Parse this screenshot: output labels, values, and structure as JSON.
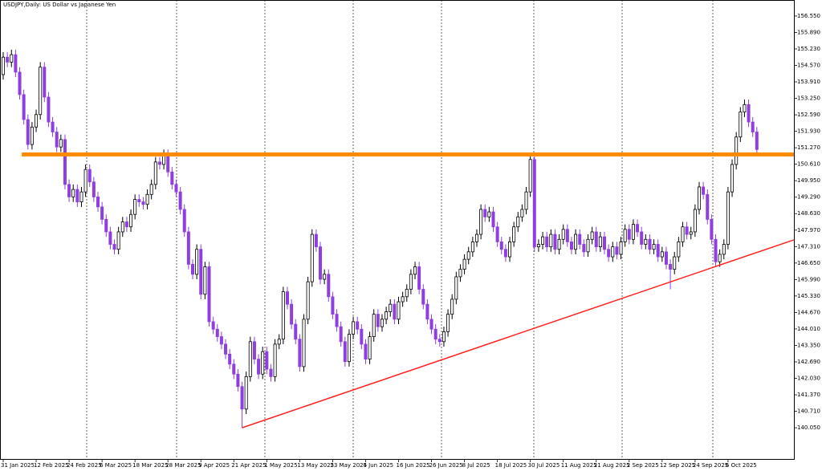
{
  "chart_data": {
    "type": "candlestick",
    "title": "USDJPY,Daily:  US Dollar vs Japanese Yen",
    "up_color": "#ffffff",
    "down_color": "#8e3fe0",
    "outline_color": "#000000",
    "xlim": [
      -0.78,
      192
    ],
    "ylim": [
      138.8,
      157.19
    ],
    "yticks": [
      {
        "value": 156.55,
        "label": "156.550"
      },
      {
        "value": 155.89,
        "label": "155.890"
      },
      {
        "value": 155.23,
        "label": "155.230"
      },
      {
        "value": 154.57,
        "label": "154.570"
      },
      {
        "value": 153.91,
        "label": "153.910"
      },
      {
        "value": 153.25,
        "label": "153.250"
      },
      {
        "value": 152.59,
        "label": "152.590"
      },
      {
        "value": 151.93,
        "label": "151.930"
      },
      {
        "value": 151.27,
        "label": "151.270"
      },
      {
        "value": 150.61,
        "label": "150.610"
      },
      {
        "value": 149.95,
        "label": "149.950"
      },
      {
        "value": 149.29,
        "label": "149.290"
      },
      {
        "value": 148.63,
        "label": "148.630"
      },
      {
        "value": 147.97,
        "label": "147.970"
      },
      {
        "value": 147.31,
        "label": "147.310"
      },
      {
        "value": 146.65,
        "label": "146.650"
      },
      {
        "value": 145.99,
        "label": "145.990"
      },
      {
        "value": 145.33,
        "label": "145.330"
      },
      {
        "value": 144.67,
        "label": "144.670"
      },
      {
        "value": 144.01,
        "label": "144.010"
      },
      {
        "value": 143.35,
        "label": "143.350"
      },
      {
        "value": 142.69,
        "label": "142.690"
      },
      {
        "value": 142.03,
        "label": "142.030"
      },
      {
        "value": 141.37,
        "label": "141.370"
      },
      {
        "value": 140.71,
        "label": "140.710"
      },
      {
        "value": 140.05,
        "label": "140.050"
      }
    ],
    "categories": [
      "31 Jan 2025",
      null,
      null,
      null,
      null,
      null,
      null,
      null,
      "12 Feb 2025",
      null,
      null,
      null,
      null,
      null,
      null,
      null,
      "24 Feb 2025",
      null,
      null,
      null,
      null,
      null,
      null,
      null,
      "6 Mar 2025",
      null,
      null,
      null,
      null,
      null,
      null,
      null,
      "18 Mar 2025",
      null,
      null,
      null,
      null,
      null,
      null,
      null,
      "28 Mar 2025",
      null,
      null,
      null,
      null,
      null,
      null,
      null,
      "9 Apr 2025",
      null,
      null,
      null,
      null,
      null,
      null,
      null,
      "21 Apr 2025",
      null,
      null,
      null,
      null,
      null,
      null,
      null,
      "1 May 2025",
      null,
      null,
      null,
      null,
      null,
      null,
      null,
      "13 May 2025",
      null,
      null,
      null,
      null,
      null,
      null,
      null,
      "23 May 2025",
      null,
      null,
      null,
      null,
      null,
      null,
      null,
      "4 Jun 2025",
      null,
      null,
      null,
      null,
      null,
      null,
      null,
      "16 Jun 2025",
      null,
      null,
      null,
      null,
      null,
      null,
      null,
      "26 Jun 2025",
      null,
      null,
      null,
      null,
      null,
      null,
      null,
      "8 Jul 2025",
      null,
      null,
      null,
      null,
      null,
      null,
      null,
      "18 Jul 2025",
      null,
      null,
      null,
      null,
      null,
      null,
      null,
      "30 Jul 2025",
      null,
      null,
      null,
      null,
      null,
      null,
      null,
      "11 Aug 2025",
      null,
      null,
      null,
      null,
      null,
      null,
      null,
      "21 Aug 2025",
      null,
      null,
      null,
      null,
      null,
      null,
      null,
      "2 Sep 2025",
      null,
      null,
      null,
      null,
      null,
      null,
      null,
      "12 Sep 2025",
      null,
      null,
      null,
      null,
      null,
      null,
      null,
      "24 Sep 2025",
      null,
      null,
      null,
      null,
      null,
      null,
      null,
      "6 Oct 2025",
      null,
      null,
      null,
      null,
      null,
      null,
      null
    ],
    "open": [
      154.2,
      154.9,
      154.7,
      155.0,
      154.3,
      153.4,
      152.4,
      151.4,
      152.1,
      152.6,
      154.5,
      153.3,
      152.3,
      151.9,
      151.3,
      151.6,
      149.8,
      149.3,
      149.6,
      149.1,
      149.5,
      150.4,
      149.9,
      149.3,
      148.9,
      148.4,
      147.9,
      147.4,
      147.2,
      147.9,
      148.3,
      148.1,
      148.6,
      149.2,
      149.1,
      149.0,
      149.4,
      149.8,
      150.7,
      150.6,
      151.0,
      150.3,
      149.8,
      149.5,
      148.8,
      147.9,
      146.6,
      146.2,
      147.2,
      145.4,
      146.5,
      144.3,
      144.0,
      143.7,
      143.4,
      143.0,
      142.6,
      142.2,
      141.7,
      140.8,
      142.1,
      143.5,
      142.8,
      142.2,
      143.1,
      142.4,
      142.1,
      143.4,
      143.6,
      145.5,
      145.0,
      144.2,
      143.6,
      142.5,
      144.4,
      145.9,
      147.8,
      147.3,
      146.0,
      146.2,
      145.3,
      144.6,
      144.1,
      143.5,
      142.7,
      143.8,
      144.3,
      144.0,
      143.4,
      142.8,
      143.7,
      144.6,
      144.1,
      144.4,
      144.7,
      145.0,
      144.4,
      145.1,
      145.3,
      145.6,
      146.2,
      146.5,
      145.6,
      145.0,
      144.4,
      144.0,
      143.6,
      143.5,
      143.9,
      144.6,
      145.2,
      146.1,
      146.4,
      146.8,
      147.1,
      147.5,
      147.8,
      148.8,
      148.5,
      148.7,
      148.1,
      147.5,
      147.2,
      146.9,
      147.5,
      148.1,
      148.5,
      148.8,
      149.5,
      150.8,
      147.3,
      147.4,
      147.7,
      147.3,
      147.8,
      147.2,
      147.6,
      148.0,
      147.5,
      147.2,
      147.8,
      147.4,
      147.1,
      147.6,
      147.9,
      147.3,
      147.7,
      147.2,
      146.9,
      147.3,
      147.0,
      147.5,
      148.0,
      147.6,
      148.2,
      147.9,
      147.4,
      147.6,
      147.2,
      147.4,
      146.9,
      147.1,
      146.6,
      146.4,
      146.9,
      147.5,
      148.1,
      147.8,
      147.9,
      148.8,
      149.7,
      149.4,
      148.4,
      147.6,
      146.7,
      147.0,
      147.4,
      149.5,
      150.6,
      151.7,
      152.7,
      153.0,
      152.3,
      151.9
    ],
    "high": [
      155.1,
      155.1,
      155.2,
      155.2,
      154.5,
      153.6,
      152.6,
      152.3,
      152.8,
      154.7,
      154.7,
      153.5,
      152.5,
      152.1,
      151.8,
      151.8,
      150.0,
      149.8,
      149.8,
      149.7,
      150.6,
      150.6,
      150.1,
      149.5,
      149.1,
      148.6,
      148.1,
      147.6,
      148.1,
      148.5,
      148.5,
      148.8,
      149.4,
      149.4,
      149.3,
      149.6,
      150.0,
      150.9,
      150.9,
      151.2,
      151.2,
      150.5,
      150.0,
      149.7,
      149.0,
      148.1,
      146.8,
      147.4,
      147.4,
      146.7,
      146.7,
      144.5,
      144.2,
      143.9,
      143.6,
      143.2,
      142.8,
      142.4,
      141.9,
      142.3,
      143.7,
      143.7,
      143.0,
      143.3,
      143.3,
      142.6,
      143.6,
      143.8,
      145.7,
      145.7,
      145.2,
      144.4,
      143.8,
      144.6,
      146.1,
      148.0,
      148.0,
      147.5,
      146.4,
      146.4,
      145.5,
      144.8,
      144.3,
      143.7,
      144.0,
      144.5,
      144.5,
      144.2,
      143.6,
      143.9,
      144.8,
      144.8,
      144.6,
      144.9,
      145.2,
      145.2,
      145.3,
      145.5,
      145.8,
      146.4,
      146.7,
      146.7,
      145.8,
      145.2,
      144.6,
      144.2,
      143.8,
      144.1,
      144.8,
      145.4,
      146.3,
      146.6,
      147.0,
      147.3,
      147.7,
      148.0,
      149.0,
      149.0,
      148.9,
      148.9,
      148.3,
      147.7,
      147.4,
      147.7,
      148.3,
      148.7,
      149.0,
      149.7,
      151.0,
      151.0,
      147.6,
      147.9,
      147.9,
      148.0,
      148.0,
      147.8,
      148.2,
      148.2,
      147.7,
      148.0,
      148.0,
      147.6,
      147.8,
      148.1,
      148.1,
      147.9,
      147.9,
      147.4,
      147.5,
      147.5,
      147.7,
      148.2,
      148.2,
      148.4,
      148.4,
      148.1,
      147.8,
      147.8,
      147.6,
      147.6,
      147.3,
      147.3,
      146.8,
      147.1,
      147.7,
      148.3,
      148.3,
      148.1,
      149.0,
      149.9,
      149.9,
      149.6,
      148.6,
      147.8,
      147.2,
      147.6,
      149.7,
      150.8,
      151.9,
      152.9,
      153.2,
      153.2,
      152.5,
      152.1
    ],
    "low": [
      154.0,
      154.5,
      154.5,
      154.1,
      153.2,
      152.2,
      151.2,
      151.2,
      151.9,
      152.4,
      153.1,
      152.1,
      151.7,
      151.1,
      151.1,
      149.6,
      149.1,
      149.1,
      148.9,
      148.9,
      149.3,
      149.7,
      149.1,
      148.7,
      148.2,
      147.7,
      147.2,
      147.0,
      147.0,
      147.7,
      147.9,
      147.9,
      148.4,
      148.9,
      148.8,
      148.8,
      149.2,
      149.6,
      150.4,
      150.4,
      150.1,
      149.6,
      149.3,
      148.6,
      147.7,
      146.4,
      146.0,
      146.0,
      145.2,
      145.2,
      144.1,
      143.8,
      143.5,
      143.2,
      142.8,
      142.4,
      142.0,
      141.5,
      140.05,
      140.6,
      141.9,
      142.6,
      142.0,
      142.0,
      142.2,
      141.9,
      141.9,
      143.2,
      143.4,
      144.8,
      144.0,
      143.4,
      142.3,
      142.3,
      144.2,
      145.7,
      147.1,
      145.8,
      145.8,
      145.1,
      144.4,
      143.9,
      143.3,
      142.5,
      142.5,
      143.6,
      143.8,
      143.2,
      142.6,
      142.6,
      143.5,
      143.9,
      143.9,
      144.2,
      144.5,
      144.2,
      144.2,
      144.9,
      145.1,
      145.4,
      146.0,
      145.4,
      144.8,
      144.2,
      143.8,
      143.4,
      143.3,
      143.3,
      143.7,
      144.4,
      145.0,
      145.9,
      146.2,
      146.6,
      146.9,
      147.3,
      147.6,
      148.3,
      148.3,
      147.9,
      147.3,
      147.0,
      146.7,
      146.7,
      147.3,
      147.9,
      148.3,
      148.6,
      149.3,
      147.1,
      147.1,
      147.2,
      147.1,
      147.1,
      147.0,
      147.0,
      147.4,
      147.3,
      147.0,
      147.0,
      147.2,
      146.9,
      146.9,
      147.4,
      147.1,
      147.1,
      147.0,
      146.7,
      146.7,
      146.8,
      146.8,
      147.3,
      147.4,
      147.4,
      147.7,
      147.2,
      147.2,
      147.0,
      147.0,
      146.7,
      146.7,
      146.4,
      145.6,
      146.2,
      146.7,
      147.3,
      147.6,
      147.6,
      147.7,
      148.6,
      149.2,
      148.2,
      147.4,
      146.5,
      146.5,
      146.8,
      147.2,
      149.3,
      150.4,
      151.5,
      152.5,
      152.1,
      151.7,
      151.0
    ],
    "close": [
      154.9,
      154.7,
      155.0,
      154.3,
      153.4,
      152.4,
      151.4,
      152.1,
      152.6,
      154.5,
      153.3,
      152.3,
      151.9,
      151.3,
      151.6,
      149.8,
      149.3,
      149.6,
      149.1,
      149.5,
      150.4,
      149.9,
      149.3,
      148.9,
      148.4,
      147.9,
      147.4,
      147.2,
      147.9,
      148.3,
      148.1,
      148.6,
      149.2,
      149.1,
      149.0,
      149.4,
      149.8,
      150.7,
      150.6,
      151.0,
      150.3,
      149.8,
      149.5,
      148.8,
      147.9,
      146.6,
      146.2,
      147.2,
      145.4,
      146.5,
      144.3,
      144.0,
      143.7,
      143.4,
      143.0,
      142.6,
      142.2,
      141.7,
      140.8,
      142.1,
      143.5,
      142.8,
      142.2,
      143.1,
      142.4,
      142.1,
      143.4,
      143.6,
      145.5,
      145.0,
      144.2,
      143.6,
      142.5,
      144.4,
      145.9,
      147.8,
      147.3,
      146.0,
      146.2,
      145.3,
      144.6,
      144.1,
      143.5,
      142.7,
      143.8,
      144.3,
      144.0,
      143.4,
      142.8,
      143.7,
      144.6,
      144.1,
      144.4,
      144.7,
      145.0,
      144.4,
      145.1,
      145.3,
      145.6,
      146.2,
      146.5,
      145.6,
      145.0,
      144.4,
      144.0,
      143.6,
      143.5,
      143.9,
      144.6,
      145.2,
      146.1,
      146.4,
      146.8,
      147.1,
      147.5,
      147.8,
      148.8,
      148.5,
      148.7,
      148.1,
      147.5,
      147.2,
      146.9,
      147.5,
      148.1,
      148.5,
      148.8,
      149.5,
      150.8,
      147.3,
      147.4,
      147.7,
      147.3,
      147.8,
      147.2,
      147.6,
      148.0,
      147.5,
      147.2,
      147.8,
      147.4,
      147.1,
      147.6,
      147.9,
      147.3,
      147.7,
      147.2,
      146.9,
      147.3,
      147.0,
      147.5,
      148.0,
      147.6,
      148.2,
      147.9,
      147.4,
      147.6,
      147.2,
      147.4,
      146.9,
      147.1,
      146.6,
      146.4,
      146.9,
      147.5,
      148.1,
      147.8,
      147.9,
      148.8,
      149.7,
      149.4,
      148.4,
      147.6,
      146.7,
      147.0,
      147.4,
      149.5,
      150.6,
      151.7,
      152.7,
      153.0,
      152.3,
      151.9,
      151.2
    ],
    "level": {
      "x": [
        4.5,
        192
      ],
      "y": 151.0,
      "color": "#ff8c00"
    },
    "trendline": {
      "x": [
        58,
        192
      ],
      "y": [
        140.05,
        147.58
      ],
      "color": "#ff2020"
    }
  }
}
